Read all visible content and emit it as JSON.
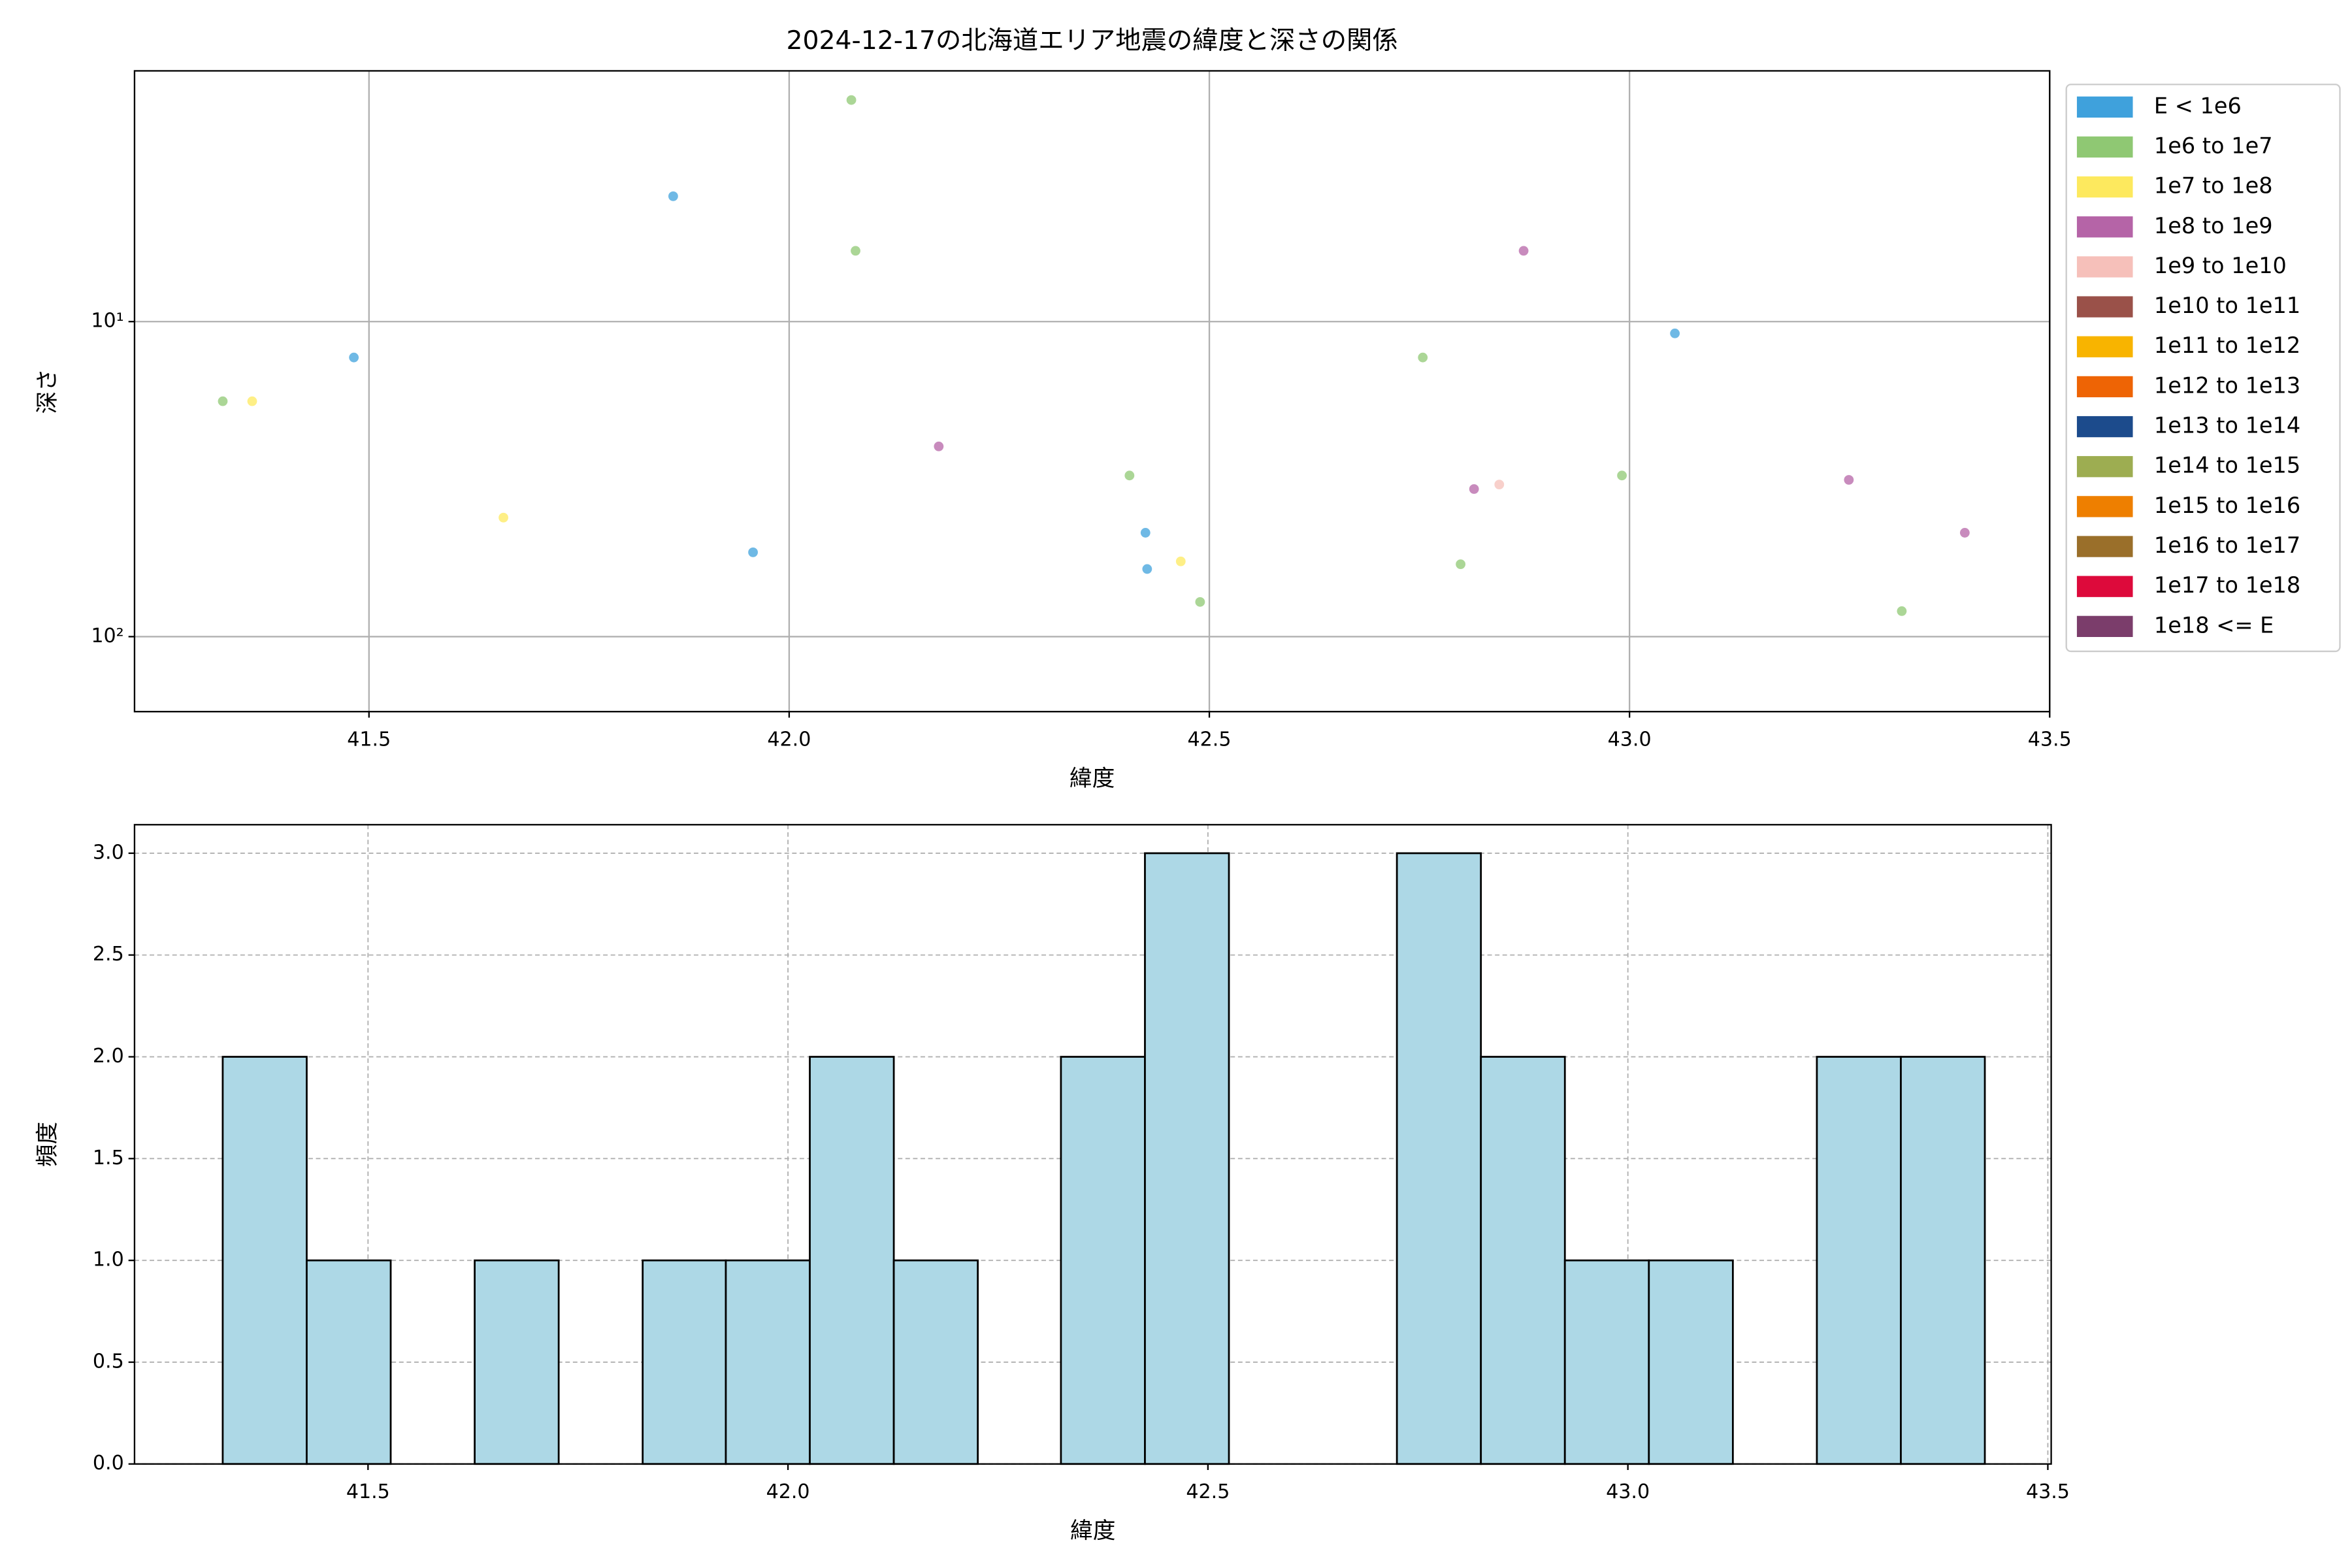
{
  "chart_data": [
    {
      "type": "scatter",
      "title": "2024-12-17の北海道エリア地震の緯度と深さの関係",
      "xlabel": "緯度",
      "ylabel": "深さ",
      "xlim": [
        41.221,
        43.5
      ],
      "xticks": [
        41.5,
        {
          "value": 42,
          "label": "42.0"
        },
        42.5,
        {
          "value": 43,
          "label": "43.0"
        },
        43.5
      ],
      "ylim": [
        173,
        1.6
      ],
      "yscale": "log",
      "yticks": [
        {
          "value": 10,
          "label": "10¹"
        },
        {
          "value": 100,
          "label": "10²"
        }
      ],
      "grid": true,
      "legend": "outside right",
      "series": [
        {
          "name": "E < 1e6",
          "color": "#3fa1dc",
          "x": [
            41.482,
            41.862,
            41.957,
            42.424,
            42.426,
            43.054
          ],
          "values": [
            13.0,
            4.0,
            54,
            46.8,
            61,
            10.9
          ]
        },
        {
          "name": "1e6 to 1e7",
          "color": "#8fc873",
          "x": [
            41.326,
            42.074,
            42.079,
            42.405,
            42.489,
            42.754,
            42.799,
            42.991,
            43.324
          ],
          "values": [
            17.9,
            1.98,
            5.96,
            30.8,
            77.6,
            13.0,
            58.9,
            30.8,
            83
          ]
        },
        {
          "name": "1e7 to 1e8",
          "color": "#fde95e",
          "x": [
            41.361,
            41.66,
            42.466
          ],
          "values": [
            17.9,
            41.9,
            57.7
          ]
        },
        {
          "name": "1e8 to 1e9",
          "color": "#b564a7",
          "x": [
            42.178,
            42.815,
            42.874,
            43.261,
            43.399
          ],
          "values": [
            24.9,
            34.0,
            5.96,
            31.8,
            46.8
          ]
        },
        {
          "name": "1e9 to 1e10",
          "color": "#f6c0ba",
          "x": [
            42.845
          ],
          "values": [
            32.9
          ]
        },
        {
          "name": "1e10 to 1e11",
          "color": "#9a5149",
          "x": [],
          "values": []
        },
        {
          "name": "1e11 to 1e12",
          "color": "#f8b400",
          "x": [],
          "values": []
        },
        {
          "name": "1e12 to 1e13",
          "color": "#ee6405",
          "x": [],
          "values": []
        },
        {
          "name": "1e13 to 1e14",
          "color": "#1c4b8c",
          "x": [],
          "values": []
        },
        {
          "name": "1e14 to 1e15",
          "color": "#9dad51",
          "x": [],
          "values": []
        },
        {
          "name": "1e15 to 1e16",
          "color": "#ee7f00",
          "x": [],
          "values": []
        },
        {
          "name": "1e16 to 1e17",
          "color": "#9a6f2a",
          "x": [],
          "values": []
        },
        {
          "name": "1e17 to 1e18",
          "color": "#dd0a3b",
          "x": [],
          "values": []
        },
        {
          "name": "1e18 <= E",
          "color": "#7b3d6b",
          "x": [],
          "values": []
        }
      ]
    },
    {
      "type": "histogram",
      "xlabel": "緯度",
      "ylabel": "頻度",
      "xlim": [
        41.222,
        43.504
      ],
      "xticks": [
        41.5,
        {
          "value": 42,
          "label": "42.0"
        },
        42.5,
        {
          "value": 43,
          "label": "43.0"
        },
        43.5
      ],
      "ylim": [
        0,
        3.14
      ],
      "yticks": [
        {
          "value": 0,
          "label": "0.0"
        },
        0.5,
        {
          "value": 1,
          "label": "1.0"
        },
        1.5,
        {
          "value": 2,
          "label": "2.0"
        },
        2.5,
        {
          "value": 3,
          "label": "3.0"
        }
      ],
      "grid": "dashed",
      "color": "#add8e6",
      "edgecolor": "#000000",
      "bins": [
        41.327,
        41.427,
        41.527,
        41.627,
        41.727,
        41.827,
        41.926,
        42.026,
        42.126,
        42.226,
        42.325,
        42.425,
        42.525,
        42.625,
        42.725,
        42.825,
        42.925,
        43.025,
        43.125,
        43.225,
        43.325,
        43.425
      ],
      "counts": [
        2,
        1,
        0,
        1,
        0,
        1,
        1,
        2,
        1,
        0,
        2,
        3,
        0,
        0,
        3,
        2,
        1,
        1,
        0,
        2,
        2
      ]
    }
  ]
}
